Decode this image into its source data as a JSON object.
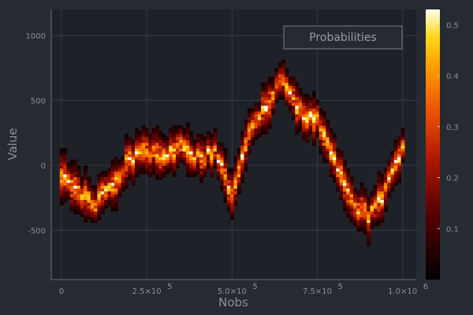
{
  "chart_data": {
    "type": "heatmap",
    "title": "",
    "xlabel": "Nobs",
    "ylabel": "Value",
    "xlim": [
      -30000,
      1040000
    ],
    "ylim": [
      -880,
      1200
    ],
    "x_ticks": [
      {
        "value": 0,
        "label": "0",
        "exp": ""
      },
      {
        "value": 250000,
        "label": "2.5×10",
        "exp": "5"
      },
      {
        "value": 500000,
        "label": "5.0×10",
        "exp": "5"
      },
      {
        "value": 750000,
        "label": "7.5×10",
        "exp": "5"
      },
      {
        "value": 1000000,
        "label": "1.0×10",
        "exp": "6"
      }
    ],
    "y_ticks": [
      {
        "value": -500,
        "label": "-500"
      },
      {
        "value": 0,
        "label": "0"
      },
      {
        "value": 500,
        "label": "500"
      },
      {
        "value": 1000,
        "label": "1000"
      }
    ],
    "legend": {
      "entries": [
        "Probabilities"
      ],
      "placement": "top-right"
    },
    "grid": true,
    "colorbar": {
      "colormap": "inferno-like (black-red-orange-yellow-white)",
      "range": [
        0,
        0.53
      ],
      "ticks": [
        {
          "value": 0.1,
          "label": "0.1"
        },
        {
          "value": 0.2,
          "label": "0.2"
        },
        {
          "value": 0.3,
          "label": "0.3"
        },
        {
          "value": 0.4,
          "label": "0.4"
        },
        {
          "value": 0.5,
          "label": "0.5"
        }
      ]
    },
    "bin_width": 10000,
    "median_x": [
      0,
      50000,
      100000,
      150000,
      200000,
      250000,
      300000,
      350000,
      400000,
      450000,
      500000,
      550000,
      600000,
      650000,
      700000,
      750000,
      800000,
      850000,
      900000,
      950000,
      1000000
    ],
    "median_y": [
      -50,
      -230,
      -280,
      -170,
      50,
      110,
      50,
      170,
      70,
      110,
      -220,
      230,
      470,
      680,
      400,
      350,
      30,
      -290,
      -400,
      -200,
      150
    ],
    "band_half_width_y": 200
  }
}
